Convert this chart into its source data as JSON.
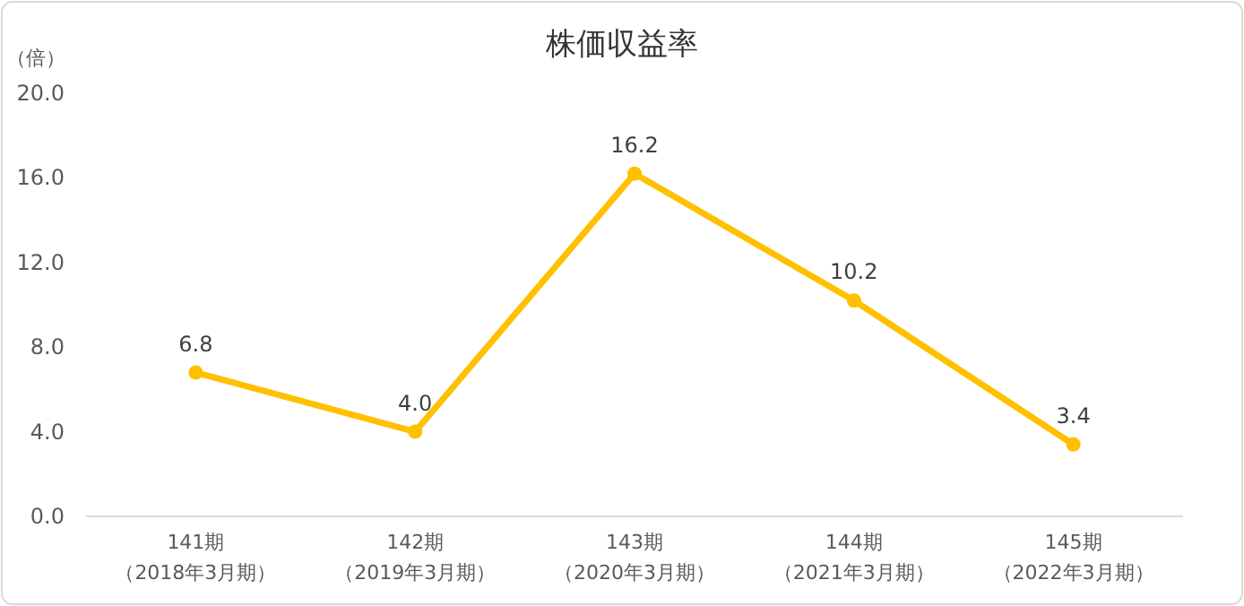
{
  "chart_data": {
    "type": "line",
    "title": "株価収益率",
    "ylabel": "（倍）",
    "categories": [
      "141期（2018年3月期）",
      "142期（2019年3月期）",
      "143期（2020年3月期）",
      "144期（2021年3月期）",
      "145期（2022年3月期）"
    ],
    "values": [
      6.8,
      4.0,
      16.2,
      10.2,
      3.4
    ],
    "value_labels": [
      "6.8",
      "4.0",
      "16.2",
      "10.2",
      "3.4"
    ],
    "color": "#ffc000",
    "marker": "circle",
    "line_style": "solid",
    "ylim": [
      0,
      20
    ],
    "yticks": [
      {
        "value": 0,
        "label": "0.0"
      },
      {
        "value": 4,
        "label": "4.0"
      },
      {
        "value": 8,
        "label": "8.0"
      },
      {
        "value": 12,
        "label": "12.0"
      },
      {
        "value": 16,
        "label": "16.0"
      },
      {
        "value": 20,
        "label": "20.0"
      }
    ],
    "grid": false
  }
}
